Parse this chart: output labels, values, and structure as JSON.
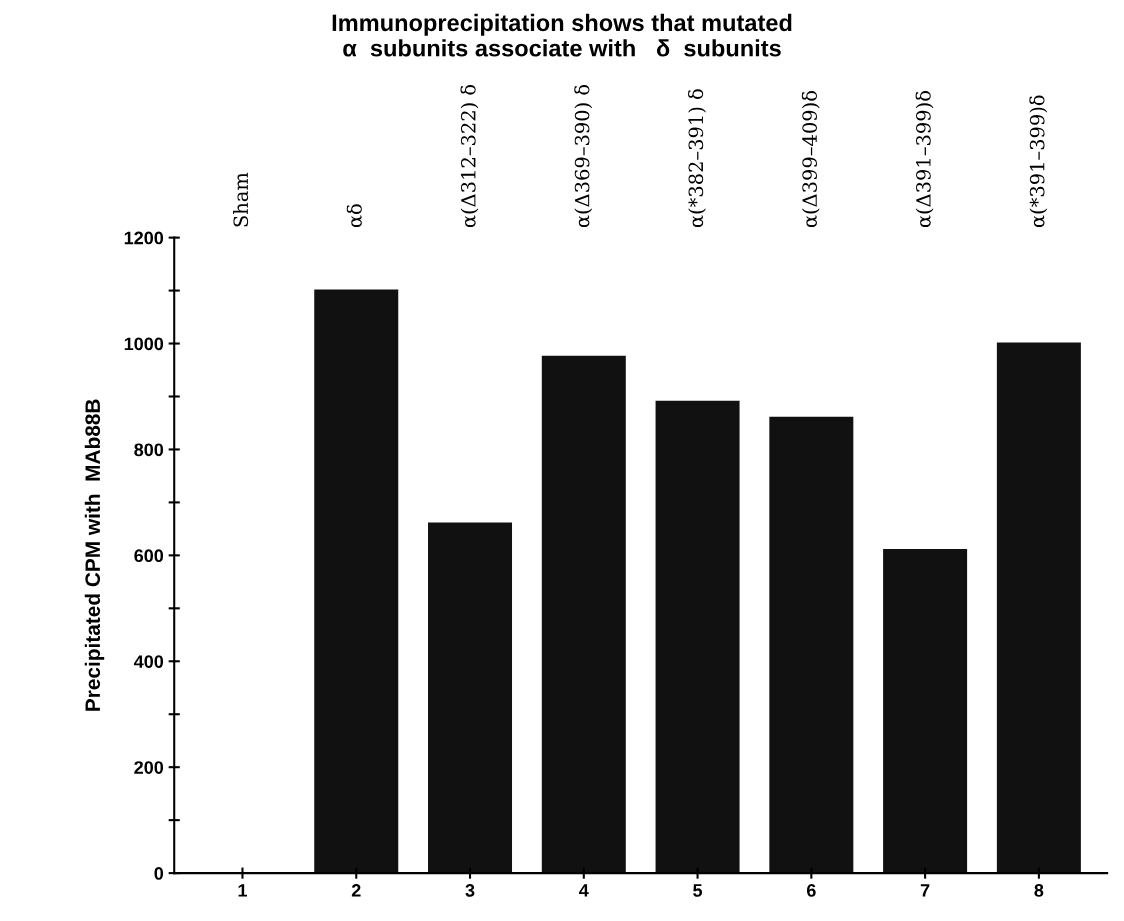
{
  "chart_data": {
    "type": "bar",
    "title": "Immunoprecipitation shows that mutated\nα  subunits associate with   δ  subunits",
    "ylabel": "Precipitated CPM with  MAb88B",
    "categories": [
      "1",
      "2",
      "3",
      "4",
      "5",
      "6",
      "7",
      "8"
    ],
    "values": [
      0,
      1100,
      660,
      975,
      890,
      860,
      610,
      1000
    ],
    "color": "#111111",
    "ylim": [
      0,
      1200
    ],
    "yticks": [
      0,
      {
        "value": 100,
        "label": null
      },
      200,
      {
        "value": 300,
        "label": null
      },
      400,
      {
        "value": 500,
        "label": null
      },
      600,
      {
        "value": 700,
        "label": null
      },
      800,
      {
        "value": 900,
        "label": null
      },
      1000,
      {
        "value": 1100,
        "label": null
      },
      1200
    ],
    "grid": false,
    "annotations": [
      "Sham",
      "αδ",
      "α(Δ312–322) δ",
      "α(Δ369–390) δ",
      "α(*382–391) δ",
      "α(Δ399–409)δ",
      "α(Δ391–399)δ",
      "α(*391–399)δ"
    ]
  }
}
